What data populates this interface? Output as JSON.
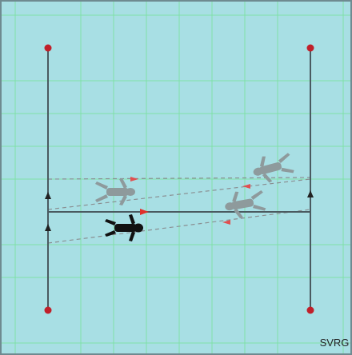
{
  "logo": "SVRG"
}
